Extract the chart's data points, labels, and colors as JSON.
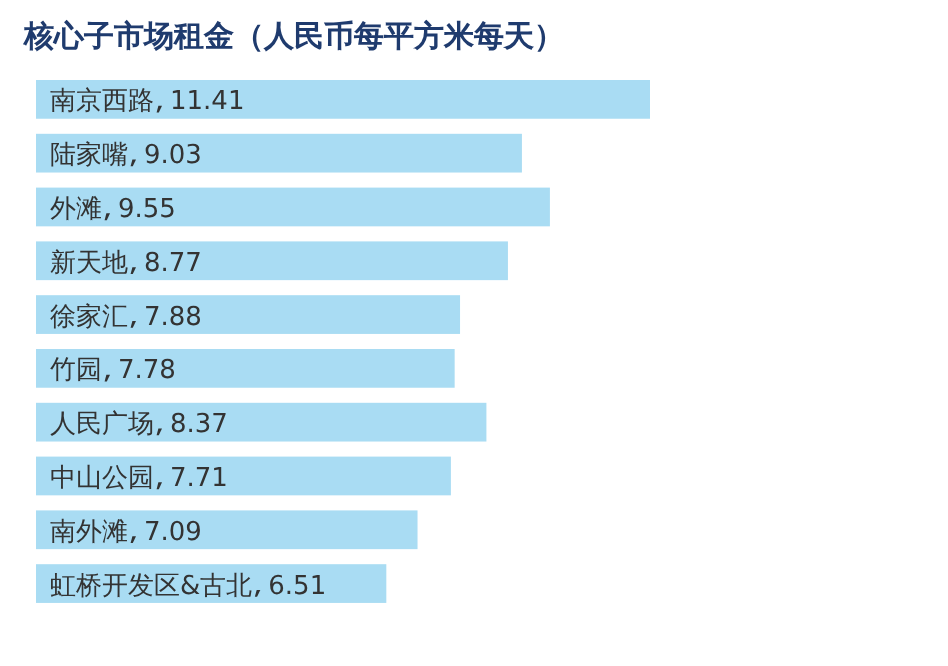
{
  "chart_data": {
    "type": "bar",
    "orientation": "horizontal",
    "title": "核心子市场租金（人民币每平方米每天）",
    "categories": [
      "南京西路",
      "陆家嘴",
      "外滩",
      "新天地",
      "徐家汇",
      "竹园",
      "人民广场",
      "中山公园",
      "南外滩",
      "虹桥开发区&古北"
    ],
    "values": [
      11.41,
      9.03,
      9.55,
      8.77,
      7.88,
      7.78,
      8.37,
      7.71,
      7.09,
      6.51
    ],
    "color": "#a9dcf3",
    "data_labels": true
  }
}
